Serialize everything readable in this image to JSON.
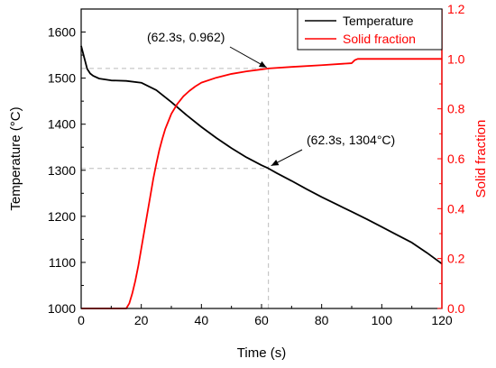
{
  "chart_data": {
    "type": "line",
    "dual_axis": true,
    "xlabel": "Time (s)",
    "ylabel_left": "Temperature (°C)",
    "ylabel_right": "Solid fraction",
    "xlim": [
      0,
      120
    ],
    "ylim_left": [
      1000,
      1650
    ],
    "ylim_right": [
      0,
      1.2
    ],
    "xticks": [
      0,
      20,
      40,
      60,
      80,
      100,
      120
    ],
    "yticks_left": [
      1000,
      1100,
      1200,
      1300,
      1400,
      1500,
      1600
    ],
    "yticks_right": [
      0.0,
      0.2,
      0.4,
      0.6,
      0.8,
      1.0,
      1.2
    ],
    "xtick_labels": [
      "0",
      "20",
      "40",
      "60",
      "80",
      "100",
      "120"
    ],
    "ytick_labels_left": [
      "1000",
      "1100",
      "1200",
      "1300",
      "1400",
      "1500",
      "1600"
    ],
    "ytick_labels_right": [
      "0.0",
      "0.2",
      "0.4",
      "0.6",
      "0.8",
      "1.0",
      "1.2"
    ],
    "grid": false,
    "legend_position": "top-right",
    "series": [
      {
        "name": "Temperature",
        "axis": "left",
        "color": "#000000",
        "x": [
          0,
          1,
          2,
          3,
          4,
          6,
          10,
          15,
          20,
          25,
          30,
          35,
          40,
          45,
          50,
          55,
          60,
          62.3,
          65,
          70,
          75,
          80,
          85,
          90,
          95,
          100,
          105,
          110,
          115,
          120
        ],
        "y": [
          1570,
          1545,
          1520,
          1510,
          1505,
          1499,
          1495,
          1494,
          1490,
          1474,
          1448,
          1420,
          1394,
          1370,
          1348,
          1328,
          1311,
          1304,
          1294,
          1277,
          1259,
          1242,
          1226,
          1210,
          1194,
          1177,
          1160,
          1143,
          1121,
          1097
        ]
      },
      {
        "name": "Solid fraction",
        "axis": "right",
        "color": "#ff0000",
        "x": [
          0,
          14,
          15,
          16,
          17,
          18,
          19,
          20,
          21,
          22,
          23,
          24,
          25,
          26,
          27,
          28,
          29,
          30,
          32,
          34,
          36,
          38,
          40,
          45,
          50,
          55,
          60,
          62.3,
          70,
          80,
          90,
          91,
          92,
          100,
          110,
          120
        ],
        "y": [
          0,
          0,
          0,
          0.02,
          0.06,
          0.11,
          0.17,
          0.24,
          0.31,
          0.38,
          0.45,
          0.52,
          0.58,
          0.635,
          0.68,
          0.72,
          0.75,
          0.78,
          0.82,
          0.85,
          0.872,
          0.89,
          0.905,
          0.925,
          0.94,
          0.95,
          0.958,
          0.962,
          0.968,
          0.975,
          0.983,
          0.995,
          1.0,
          1.0,
          1.0,
          1.0
        ]
      }
    ],
    "annotations": [
      {
        "text": "(62.3s, 0.962)",
        "point": {
          "x": 62.3,
          "y": 0.962,
          "axis": "right"
        }
      },
      {
        "text": "(62.3s, 1304°C)",
        "point": {
          "x": 62.3,
          "y": 1304,
          "axis": "left"
        }
      }
    ],
    "reference_lines": {
      "color": "#bbbbbb",
      "style": "dashed",
      "x": 62.3,
      "y_left": 1304,
      "y_right": 0.962
    },
    "legend": [
      {
        "label": "Temperature",
        "color": "#000000"
      },
      {
        "label": "Solid fraction",
        "color": "#ff0000"
      }
    ],
    "colors": {
      "right_axis": "#ff0000",
      "left_axis": "#000000"
    }
  }
}
